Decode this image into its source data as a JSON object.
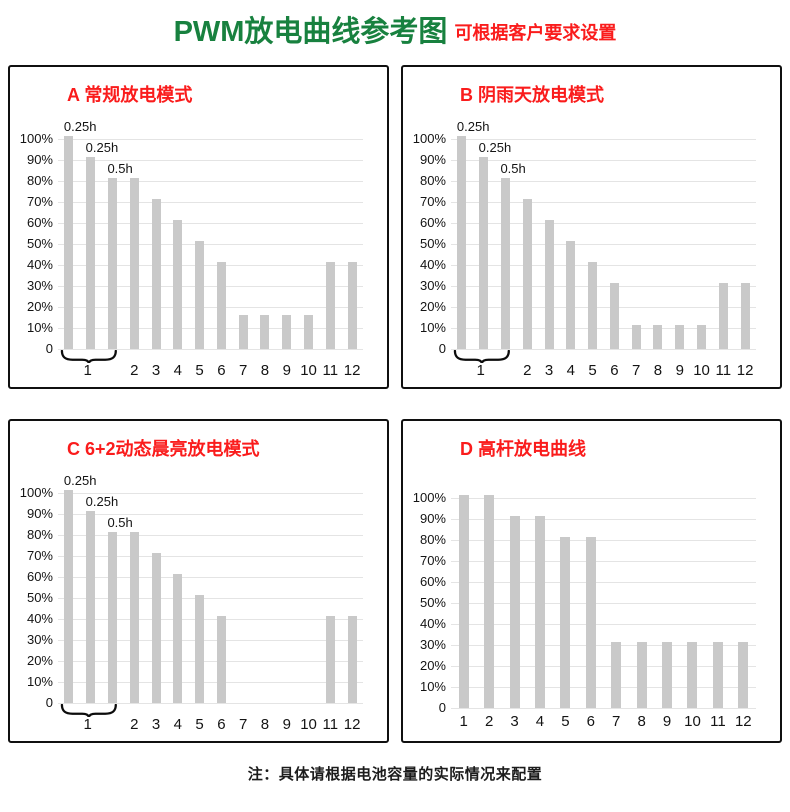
{
  "page": {
    "title_main": "PWM放电曲线参考图",
    "title_sub": "可根据客户要求设置",
    "footer_note": "注：具体请根据电池容量的实际情况来配置"
  },
  "colors": {
    "title_green": "#18813f",
    "accent_red": "#fa1c1c",
    "bar_fill": "#c9c9c9",
    "gridline": "#e4e4e4",
    "axis_text": "#141414"
  },
  "chart_data": [
    {
      "id": "A",
      "type": "bar",
      "title": "A 常规放电模式",
      "ylim": [
        0,
        100
      ],
      "grid": true,
      "yticks": [
        "100%",
        "90%",
        "80%",
        "70%",
        "60%",
        "50%",
        "40%",
        "30%",
        "20%",
        "10%",
        "0"
      ],
      "categories": [
        "1",
        "2",
        "3",
        "4",
        "5",
        "6",
        "7",
        "8",
        "9",
        "10",
        "11",
        "12"
      ],
      "group_brace": {
        "label": "1",
        "span_bars": [
          0,
          2
        ]
      },
      "bars": [
        {
          "x": "1",
          "value": 100,
          "label": "0.25h"
        },
        {
          "x": "1",
          "value": 90,
          "label": "0.25h"
        },
        {
          "x": "1",
          "value": 80,
          "label": "0.5h"
        },
        {
          "x": "2",
          "value": 80
        },
        {
          "x": "3",
          "value": 70
        },
        {
          "x": "4",
          "value": 60
        },
        {
          "x": "5",
          "value": 50
        },
        {
          "x": "6",
          "value": 40
        },
        {
          "x": "7",
          "value": 15
        },
        {
          "x": "8",
          "value": 15
        },
        {
          "x": "9",
          "value": 15
        },
        {
          "x": "10",
          "value": 15
        },
        {
          "x": "11",
          "value": 40
        },
        {
          "x": "12",
          "value": 40
        }
      ]
    },
    {
      "id": "B",
      "type": "bar",
      "title": "B 阴雨天放电模式",
      "ylim": [
        0,
        100
      ],
      "grid": true,
      "yticks": [
        "100%",
        "90%",
        "80%",
        "70%",
        "60%",
        "50%",
        "40%",
        "30%",
        "20%",
        "10%",
        "0"
      ],
      "categories": [
        "1",
        "2",
        "3",
        "4",
        "5",
        "6",
        "7",
        "8",
        "9",
        "10",
        "11",
        "12"
      ],
      "group_brace": {
        "label": "1",
        "span_bars": [
          0,
          2
        ]
      },
      "bars": [
        {
          "x": "1",
          "value": 100,
          "label": "0.25h"
        },
        {
          "x": "1",
          "value": 90,
          "label": "0.25h"
        },
        {
          "x": "1",
          "value": 80,
          "label": "0.5h"
        },
        {
          "x": "2",
          "value": 70
        },
        {
          "x": "3",
          "value": 60
        },
        {
          "x": "4",
          "value": 50
        },
        {
          "x": "5",
          "value": 40
        },
        {
          "x": "6",
          "value": 30
        },
        {
          "x": "7",
          "value": 10
        },
        {
          "x": "8",
          "value": 10
        },
        {
          "x": "9",
          "value": 10
        },
        {
          "x": "10",
          "value": 10
        },
        {
          "x": "11",
          "value": 30
        },
        {
          "x": "12",
          "value": 30
        }
      ]
    },
    {
      "id": "C",
      "type": "bar",
      "title": "C 6+2动态晨亮放电模式",
      "ylim": [
        0,
        100
      ],
      "grid": true,
      "yticks": [
        "100%",
        "90%",
        "80%",
        "70%",
        "60%",
        "50%",
        "40%",
        "30%",
        "20%",
        "10%",
        "0"
      ],
      "categories": [
        "1",
        "2",
        "3",
        "4",
        "5",
        "6",
        "7",
        "8",
        "9",
        "10",
        "11",
        "12"
      ],
      "group_brace": {
        "label": "1",
        "span_bars": [
          0,
          2
        ]
      },
      "bars": [
        {
          "x": "1",
          "value": 100,
          "label": "0.25h"
        },
        {
          "x": "1",
          "value": 90,
          "label": "0.25h"
        },
        {
          "x": "1",
          "value": 80,
          "label": "0.5h"
        },
        {
          "x": "2",
          "value": 80
        },
        {
          "x": "3",
          "value": 70
        },
        {
          "x": "4",
          "value": 60
        },
        {
          "x": "5",
          "value": 50
        },
        {
          "x": "6",
          "value": 40
        },
        {
          "x": "7",
          "value": 0
        },
        {
          "x": "8",
          "value": 0
        },
        {
          "x": "9",
          "value": 0
        },
        {
          "x": "10",
          "value": 0
        },
        {
          "x": "11",
          "value": 40
        },
        {
          "x": "12",
          "value": 40
        }
      ]
    },
    {
      "id": "D",
      "type": "bar",
      "title": "D 高杆放电曲线",
      "ylim": [
        0,
        100
      ],
      "grid": true,
      "yticks": [
        "100%",
        "90%",
        "80%",
        "70%",
        "60%",
        "50%",
        "40%",
        "30%",
        "20%",
        "10%",
        "0"
      ],
      "categories": [
        "1",
        "2",
        "3",
        "4",
        "5",
        "6",
        "7",
        "8",
        "9",
        "10",
        "11",
        "12"
      ],
      "bars": [
        {
          "x": "1",
          "value": 100
        },
        {
          "x": "2",
          "value": 100
        },
        {
          "x": "3",
          "value": 90
        },
        {
          "x": "4",
          "value": 90
        },
        {
          "x": "5",
          "value": 80
        },
        {
          "x": "6",
          "value": 80
        },
        {
          "x": "7",
          "value": 30
        },
        {
          "x": "8",
          "value": 30
        },
        {
          "x": "9",
          "value": 30
        },
        {
          "x": "10",
          "value": 30
        },
        {
          "x": "11",
          "value": 30
        },
        {
          "x": "12",
          "value": 30
        }
      ]
    }
  ]
}
